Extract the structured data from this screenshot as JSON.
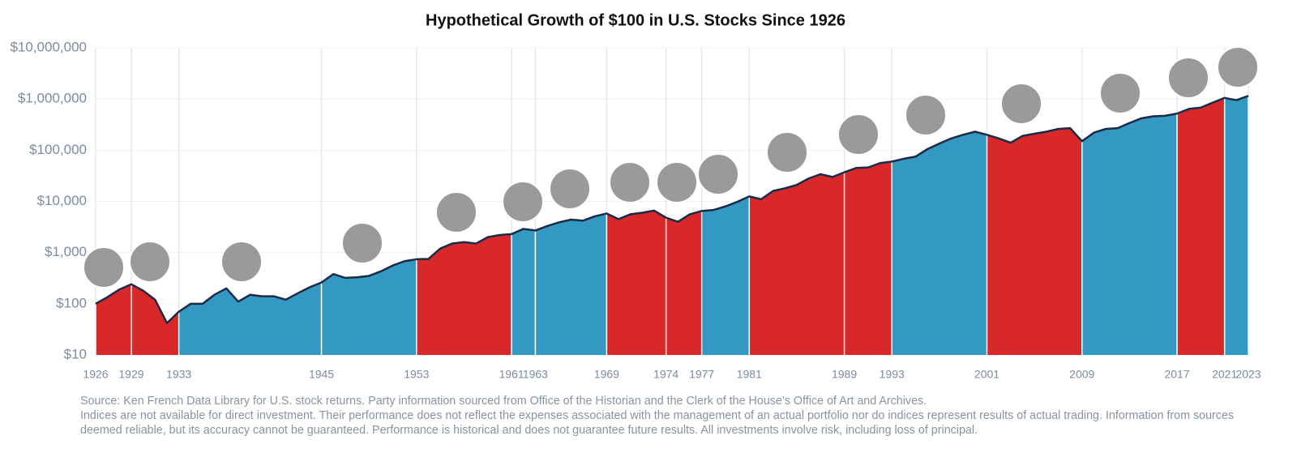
{
  "chart_data": {
    "type": "area",
    "title": "Hypothetical Growth of $100 in U.S. Stocks Since 1926",
    "log_y": true,
    "x": [
      1926,
      1927,
      1928,
      1929,
      1930,
      1931,
      1932,
      1933,
      1934,
      1935,
      1936,
      1937,
      1938,
      1939,
      1940,
      1941,
      1942,
      1943,
      1944,
      1945,
      1946,
      1947,
      1948,
      1949,
      1950,
      1951,
      1952,
      1953,
      1954,
      1955,
      1956,
      1957,
      1958,
      1959,
      1960,
      1961,
      1962,
      1963,
      1964,
      1965,
      1966,
      1967,
      1968,
      1969,
      1970,
      1971,
      1972,
      1973,
      1974,
      1975,
      1976,
      1977,
      1978,
      1979,
      1980,
      1981,
      1982,
      1983,
      1984,
      1985,
      1986,
      1987,
      1988,
      1989,
      1990,
      1991,
      1992,
      1993,
      1994,
      1995,
      1996,
      1997,
      1998,
      1999,
      2000,
      2001,
      2002,
      2003,
      2004,
      2005,
      2006,
      2007,
      2008,
      2009,
      2010,
      2011,
      2012,
      2013,
      2014,
      2015,
      2016,
      2017,
      2018,
      2019,
      2020,
      2021,
      2022,
      2023
    ],
    "values": [
      100,
      135,
      190,
      240,
      180,
      120,
      42,
      70,
      100,
      100,
      150,
      200,
      110,
      150,
      140,
      140,
      120,
      160,
      210,
      260,
      380,
      320,
      330,
      350,
      430,
      560,
      680,
      740,
      750,
      1200,
      1500,
      1600,
      1500,
      2000,
      2200,
      2300,
      2900,
      2700,
      3300,
      3900,
      4400,
      4200,
      5100,
      5800,
      4500,
      5600,
      6000,
      6600,
      4800,
      4000,
      5600,
      6500,
      6800,
      8000,
      9800,
      12500,
      11000,
      16000,
      18000,
      21000,
      28000,
      34000,
      30000,
      37000,
      45000,
      46000,
      56000,
      60000,
      68000,
      75000,
      105000,
      135000,
      170000,
      200000,
      230000,
      200000,
      170000,
      140000,
      190000,
      210000,
      230000,
      260000,
      270000,
      150000,
      220000,
      260000,
      270000,
      340000,
      420000,
      460000,
      470000,
      520000,
      640000,
      680000,
      850000,
      1050000,
      950000,
      1150000
    ],
    "xlim": [
      1926,
      2023
    ],
    "xticks": [
      1926,
      1929,
      1933,
      1945,
      1953,
      1961,
      1963,
      1969,
      1974,
      1977,
      1981,
      1989,
      1993,
      2001,
      2009,
      2017,
      2021,
      2023
    ],
    "segment_colors": [
      "#d8282a",
      "#d8282a",
      "#3399c3",
      "#3399c3",
      "#d8282a",
      "#3399c3",
      "#3399c3",
      "#d8282a",
      "#d8282a",
      "#3399c3",
      "#d8282a",
      "#d8282a",
      "#3399c3",
      "#d8282a",
      "#3399c3",
      "#d8282a",
      "#3399c3"
    ],
    "line_color": "#1b2b45",
    "ylim": [
      10,
      10000000
    ],
    "yticks": [
      {
        "value": 10,
        "label": "$10"
      },
      {
        "value": 100,
        "label": "$100"
      },
      {
        "value": 1000,
        "label": "$1,000"
      },
      {
        "value": 10000,
        "label": "$10,000"
      },
      {
        "value": 100000,
        "label": "$100,000"
      },
      {
        "value": 1000000,
        "label": "$1,000,000"
      },
      {
        "value": 10000000,
        "label": "$10,000,000"
      }
    ],
    "grid": true,
    "source": "Source: Ken French Data Library for U.S. stock returns. Party information sourced from Office of the Historian and the Clerk of the House’s Office of Art and Archives.",
    "disclaimer": "Indices are not available for direct investment. Their performance does not reflect the expenses associated with the management of an actual portfolio nor do indices represent results of actual trading. Information from sources deemed reliable, but its accuracy cannot be guaranteed. Performance is historical and does not guarantee future results. All investments involve risk, including loss of principal."
  }
}
